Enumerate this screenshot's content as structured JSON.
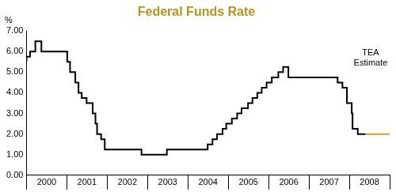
{
  "chart_data": {
    "type": "line",
    "title": "Federal Funds Rate",
    "ylabel": "%",
    "line_style": "step",
    "grid": false,
    "xlim": [
      2000,
      2009
    ],
    "xticks": [
      {
        "value": 2000.5,
        "label": "2000"
      },
      {
        "value": 2001.5,
        "label": "2001"
      },
      {
        "value": 2002.5,
        "label": "2002"
      },
      {
        "value": 2003.5,
        "label": "2003"
      },
      {
        "value": 2004.5,
        "label": "2004"
      },
      {
        "value": 2005.5,
        "label": "2005"
      },
      {
        "value": 2006.5,
        "label": "2006"
      },
      {
        "value": 2007.5,
        "label": "2007"
      },
      {
        "value": 2008.5,
        "label": "2008"
      }
    ],
    "ylim": [
      0,
      7
    ],
    "yticks": [
      {
        "value": 0,
        "label": "0.00"
      },
      {
        "value": 1,
        "label": "1.00"
      },
      {
        "value": 2,
        "label": "2.00"
      },
      {
        "value": 3,
        "label": "3.00"
      },
      {
        "value": 4,
        "label": "4.00"
      },
      {
        "value": 5,
        "label": "5.00"
      },
      {
        "value": 6,
        "label": "6.00"
      },
      {
        "value": 7,
        "label": "7.00"
      }
    ],
    "series": [
      {
        "color": "#000000",
        "x": [
          2000.0,
          2000.09,
          2000.22,
          2000.37,
          2001.01,
          2001.08,
          2001.21,
          2001.29,
          2001.37,
          2001.49,
          2001.64,
          2001.71,
          2001.75,
          2001.85,
          2001.94,
          2002.85,
          2003.48,
          2004.49,
          2004.61,
          2004.72,
          2004.86,
          2004.95,
          2005.09,
          2005.22,
          2005.33,
          2005.49,
          2005.6,
          2005.72,
          2005.83,
          2005.95,
          2006.08,
          2006.24,
          2006.36,
          2006.49,
          2007.71,
          2007.83,
          2007.94,
          2008.06,
          2008.08,
          2008.21,
          2008.33,
          2008.4
        ],
        "values": [
          5.5,
          5.75,
          6.0,
          6.5,
          6.0,
          5.5,
          5.0,
          4.5,
          4.0,
          3.75,
          3.5,
          3.0,
          2.5,
          2.0,
          1.75,
          1.25,
          1.0,
          1.25,
          1.5,
          1.75,
          2.0,
          2.25,
          2.5,
          2.75,
          3.0,
          3.25,
          3.5,
          3.75,
          4.0,
          4.25,
          4.5,
          4.75,
          5.0,
          5.25,
          4.75,
          4.5,
          4.25,
          3.5,
          3.0,
          2.25,
          2.0,
          2.0
        ]
      },
      {
        "name": "TEA Estimate",
        "color": "#c9a227",
        "x": [
          2008.4,
          2009.0
        ],
        "values": [
          2.0,
          2.0
        ]
      }
    ]
  }
}
